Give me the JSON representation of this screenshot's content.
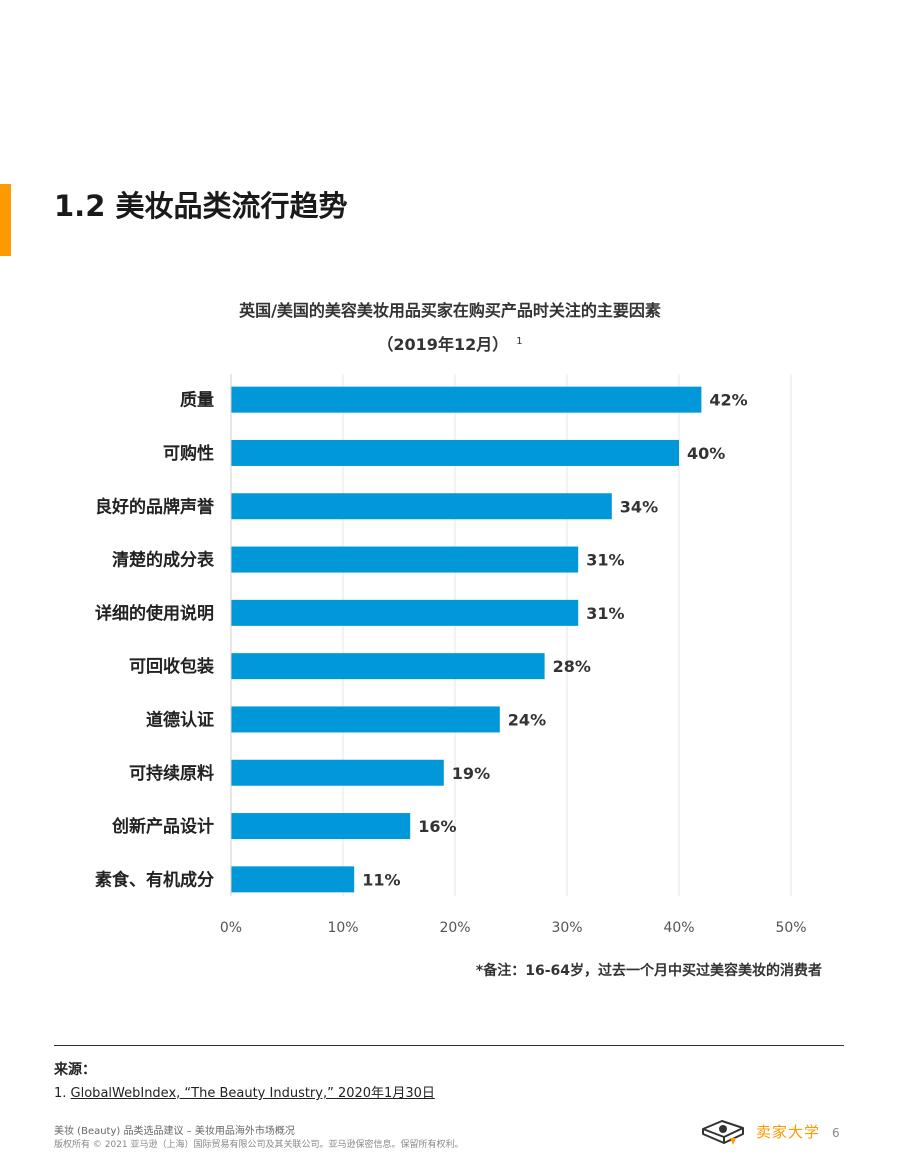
{
  "page": {
    "title": "1.2 美妆品类流行趋势",
    "accent_color": "#ff9900",
    "bar_color": "#0098d8"
  },
  "chart_data": {
    "type": "bar",
    "orientation": "horizontal",
    "title": "英国/美国的美容美妆用品买家在购买产品时关注的主要因素",
    "subtitle": "（2019年12月）",
    "subtitle_footnote": "1",
    "categories": [
      "质量",
      "可购性",
      "良好的品牌声誉",
      "清楚的成分表",
      "详细的使用说明",
      "可回收包装",
      "道德认证",
      "可持续原料",
      "创新产品设计",
      "素食、有机成分"
    ],
    "values": [
      42,
      40,
      34,
      31,
      31,
      28,
      24,
      19,
      16,
      11
    ],
    "value_labels": [
      "42%",
      "40%",
      "34%",
      "31%",
      "31%",
      "28%",
      "24%",
      "19%",
      "16%",
      "11%"
    ],
    "x_ticks": [
      "0%",
      "10%",
      "20%",
      "30%",
      "40%",
      "50%"
    ],
    "xlim": [
      0,
      50
    ],
    "grid": true,
    "legend": "none"
  },
  "note": "*备注：16-64岁，过去一个月中买过美容美妆的消费者",
  "sources": {
    "heading": "来源：",
    "items": [
      {
        "number": "1.",
        "link_text": "GlobalWebIndex, “The Beauty Industry,” 2020年1月30日"
      }
    ]
  },
  "footer": {
    "line1": "美妆 (Beauty) 品类选品建议 – 美妆用品海外市场概况",
    "line2": "版权所有 © 2021 亚马逊（上海）国际贸易有限公司及其关联公司。亚马逊保密信息。保留所有权利。",
    "brand_name": "卖家大学",
    "page_number": "6"
  }
}
